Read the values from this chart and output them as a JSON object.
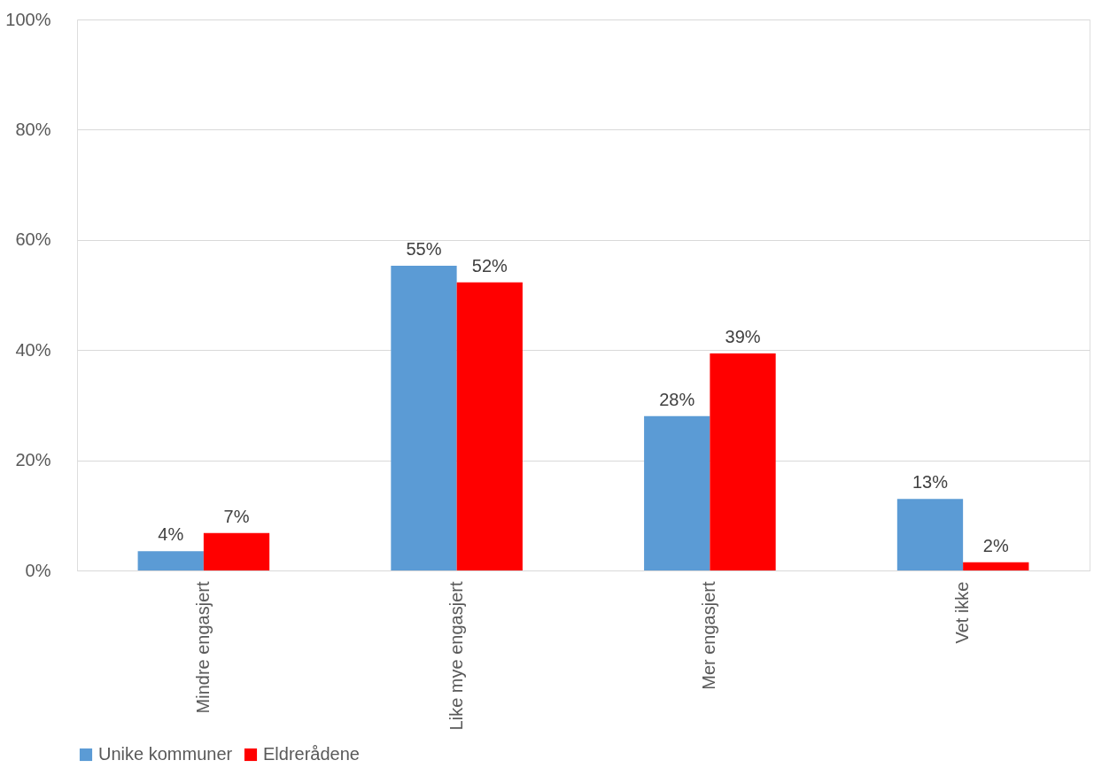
{
  "chart_data": {
    "type": "bar",
    "categories": [
      "Mindre engasjert",
      "Like mye engasjert",
      "Mer engasjert",
      "Vet ikke"
    ],
    "series": [
      {
        "name": "Unike kommuner",
        "color": "#5b9bd5",
        "values": [
          3.5,
          55.3,
          28,
          13
        ],
        "value_labels": [
          "4%",
          "55%",
          "28%",
          "13%"
        ]
      },
      {
        "name": "Eldrerådene",
        "color": "#ff0000",
        "values": [
          6.8,
          52.3,
          39.4,
          1.5
        ],
        "value_labels": [
          "7%",
          "52%",
          "39%",
          "2%"
        ]
      }
    ],
    "ylim": [
      0,
      100
    ],
    "yticks": [
      {
        "value": 0,
        "label": "0%"
      },
      {
        "value": 20,
        "label": "20%"
      },
      {
        "value": 40,
        "label": "40%"
      },
      {
        "value": 60,
        "label": "60%"
      },
      {
        "value": 80,
        "label": "80%"
      },
      {
        "value": 100,
        "label": "100%"
      }
    ],
    "grid": "y",
    "legend": "bottom"
  }
}
